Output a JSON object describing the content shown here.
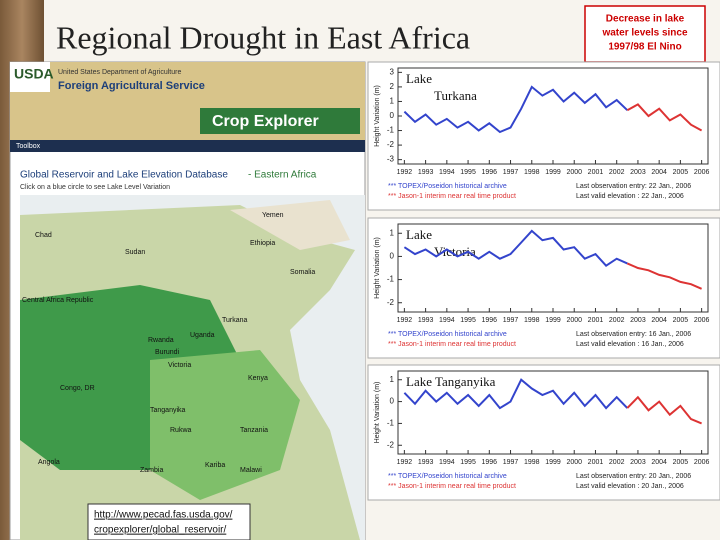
{
  "title": "Regional Drought in East Africa",
  "callout": [
    "Decrease in lake",
    "water levels since",
    "1997/98 El Nino"
  ],
  "usda": {
    "logo": "USDA",
    "department": "United States Department of Agriculture",
    "agency": "Foreign Agricultural Service",
    "product": "Crop Explorer",
    "toolbar": "Toolbox",
    "heading": "Global Reservoir and Lake Elevation Database",
    "region": "- Eastern Africa",
    "instruction": "Click on a blue circle to see Lake Level Variation"
  },
  "map_labels": [
    "Yemen",
    "Chad",
    "Sudan",
    "Ethiopia",
    "Somalia",
    "Central Africa Republic",
    "Turkana",
    "Uganda",
    "Kenya",
    "Victoria",
    "Rwanda",
    "Burundi",
    "Congo, DR",
    "Tanzania",
    "Tanganyika",
    "Rukwa",
    "Malawi",
    "Angola",
    "Zambia",
    "Kariba"
  ],
  "url": [
    "http://www.pecad.fas.usda.gov/",
    "cropexplorer/global_reservoir/"
  ],
  "lakes": [
    {
      "title_lines": [
        "Lake",
        "Turkana"
      ],
      "y_label": "Height Variation (m)",
      "x": [
        1992,
        1992.5,
        1993,
        1993.5,
        1994,
        1994.5,
        1995,
        1995.5,
        1996,
        1996.5,
        1997,
        1997.5,
        1998,
        1998.5,
        1999,
        1999.5,
        2000,
        2000.5,
        2001,
        2001.5,
        2002,
        2002.5,
        2003,
        2003.5,
        2004,
        2004.5,
        2005,
        2005.5,
        2006
      ],
      "xlim": [
        1991.7,
        2006.3
      ],
      "xticks": [
        1992,
        1993,
        1994,
        1995,
        1996,
        1997,
        1998,
        1999,
        2000,
        2001,
        2002,
        2003,
        2004,
        2005,
        2006
      ],
      "ylim": [
        -3.3,
        3.3
      ],
      "yticks": [
        3,
        2,
        1,
        0,
        -1,
        -2,
        -3
      ],
      "series": [
        {
          "name": "*** TOPEX/Poseidon historical archive",
          "color": "#3344cc",
          "values": [
            0.3,
            -0.4,
            0.1,
            -0.6,
            -0.2,
            -0.8,
            -0.4,
            -1.0,
            -0.5,
            -1.1,
            -0.8,
            0.5,
            2.0,
            1.4,
            1.8,
            1.0,
            1.6,
            0.9,
            1.5,
            0.6,
            1.1,
            0.4,
            null,
            null,
            null,
            null,
            null,
            null,
            null
          ]
        },
        {
          "name": "*** Jason-1 interim near real time product",
          "color": "#dd3333",
          "values": [
            null,
            null,
            null,
            null,
            null,
            null,
            null,
            null,
            null,
            null,
            null,
            null,
            null,
            null,
            null,
            null,
            null,
            null,
            null,
            null,
            null,
            0.4,
            0.8,
            0.0,
            0.5,
            -0.3,
            0.1,
            -0.6,
            -1.0
          ]
        }
      ],
      "last_observation": "Last observation entry: 22 Jan., 2006",
      "last_valid": "Last valid elevation : 22 Jan., 2006"
    },
    {
      "title_lines": [
        "Lake",
        "Victoria"
      ],
      "y_label": "Height Variation (m)",
      "x": [
        1992,
        1992.5,
        1993,
        1993.5,
        1994,
        1994.5,
        1995,
        1995.5,
        1996,
        1996.5,
        1997,
        1997.5,
        1998,
        1998.5,
        1999,
        1999.5,
        2000,
        2000.5,
        2001,
        2001.5,
        2002,
        2002.5,
        2003,
        2003.5,
        2004,
        2004.5,
        2005,
        2005.5,
        2006
      ],
      "xlim": [
        1991.7,
        2006.3
      ],
      "xticks": [
        1992,
        1993,
        1994,
        1995,
        1996,
        1997,
        1998,
        1999,
        2000,
        2001,
        2002,
        2003,
        2004,
        2005,
        2006
      ],
      "ylim": [
        -2.4,
        1.4
      ],
      "yticks": [
        1,
        0,
        -1,
        -2
      ],
      "series": [
        {
          "name": "*** TOPEX/Poseidon historical archive",
          "color": "#3344cc",
          "values": [
            0.4,
            0.1,
            0.3,
            0.0,
            0.3,
            0.0,
            0.2,
            -0.1,
            0.2,
            -0.1,
            0.1,
            0.6,
            1.1,
            0.7,
            0.8,
            0.3,
            0.4,
            -0.1,
            0.1,
            -0.4,
            -0.1,
            -0.3,
            null,
            null,
            null,
            null,
            null,
            null,
            null
          ]
        },
        {
          "name": "*** Jason-1 interim near real time product",
          "color": "#dd3333",
          "values": [
            null,
            null,
            null,
            null,
            null,
            null,
            null,
            null,
            null,
            null,
            null,
            null,
            null,
            null,
            null,
            null,
            null,
            null,
            null,
            null,
            null,
            -0.3,
            -0.5,
            -0.6,
            -0.8,
            -0.9,
            -1.1,
            -1.2,
            -1.4
          ]
        }
      ],
      "last_observation": "Last observation entry: 16 Jan., 2006",
      "last_valid": "Last valid elevation : 16 Jan., 2006"
    },
    {
      "title_lines": [
        "Lake Tanganyika"
      ],
      "y_label": "Height Variation (m)",
      "x": [
        1992,
        1992.5,
        1993,
        1993.5,
        1994,
        1994.5,
        1995,
        1995.5,
        1996,
        1996.5,
        1997,
        1997.5,
        1998,
        1998.5,
        1999,
        1999.5,
        2000,
        2000.5,
        2001,
        2001.5,
        2002,
        2002.5,
        2003,
        2003.5,
        2004,
        2004.5,
        2005,
        2005.5,
        2006
      ],
      "xlim": [
        1991.7,
        2006.3
      ],
      "xticks": [
        1992,
        1993,
        1994,
        1995,
        1996,
        1997,
        1998,
        1999,
        2000,
        2001,
        2002,
        2003,
        2004,
        2005,
        2006
      ],
      "ylim": [
        -2.4,
        1.4
      ],
      "yticks": [
        1,
        0,
        -1,
        -2
      ],
      "series": [
        {
          "name": "*** TOPEX/Poseidon historical archive",
          "color": "#3344cc",
          "values": [
            0.4,
            -0.1,
            0.5,
            0.0,
            0.4,
            -0.1,
            0.3,
            -0.2,
            0.3,
            -0.3,
            0.0,
            1.0,
            0.6,
            0.3,
            0.5,
            -0.1,
            0.4,
            -0.2,
            0.3,
            -0.3,
            0.2,
            -0.3,
            null,
            null,
            null,
            null,
            null,
            null,
            null
          ]
        },
        {
          "name": "*** Jason-1 interim near real time product",
          "color": "#dd3333",
          "values": [
            null,
            null,
            null,
            null,
            null,
            null,
            null,
            null,
            null,
            null,
            null,
            null,
            null,
            null,
            null,
            null,
            null,
            null,
            null,
            null,
            null,
            -0.3,
            0.2,
            -0.4,
            0.0,
            -0.6,
            -0.2,
            -0.8,
            -1.0
          ]
        }
      ],
      "last_observation": "Last observation entry: 20 Jan., 2006",
      "last_valid": "Last valid elevation : 20 Jan., 2006"
    }
  ]
}
